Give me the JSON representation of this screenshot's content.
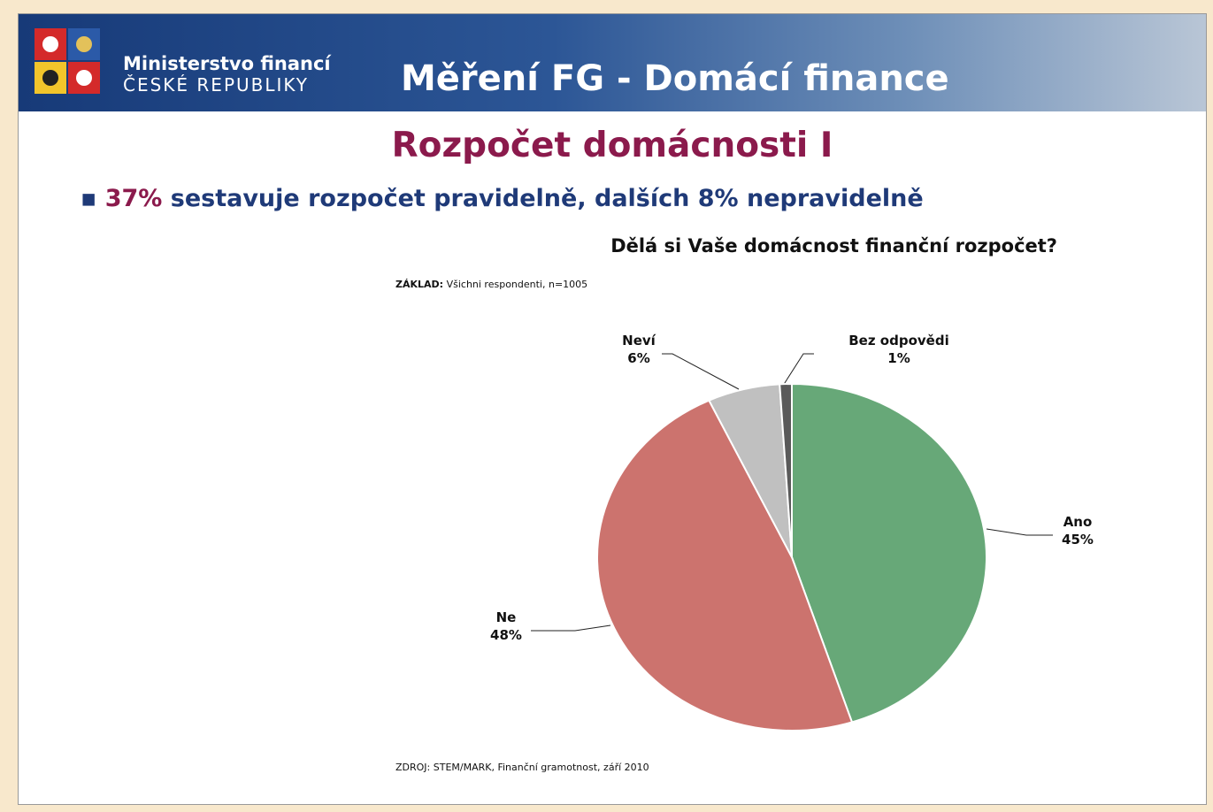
{
  "header": {
    "ministry_line1": "Ministerstvo financí",
    "ministry_line2": "ČESKÉ REPUBLIKY",
    "title": "Měření FG - Domácí finance"
  },
  "slide_title": "Rozpočet domácnosti I",
  "bullet": {
    "highlight": "37%",
    "text": "sestavuje rozpočet pravidelně, dalších 8% nepravidelně"
  },
  "chart_data": {
    "type": "pie",
    "title": "Dělá si Vaše domácnost finanční rozpočet?",
    "base_label": "ZÁKLAD:",
    "base_text": "Všichni respondenti, n=1005",
    "categories": [
      "Ano",
      "Ne",
      "Neví",
      "Bez odpovědi"
    ],
    "values": [
      45,
      48,
      6,
      1
    ],
    "value_labels": [
      "45%",
      "48%",
      "6%",
      "1%"
    ],
    "colors": [
      "#67a878",
      "#cc736e",
      "#c0c0c0",
      "#5a5a5a"
    ],
    "source": "ZDROJ: STEM/MARK, Finanční gramotnost, září 2010"
  }
}
